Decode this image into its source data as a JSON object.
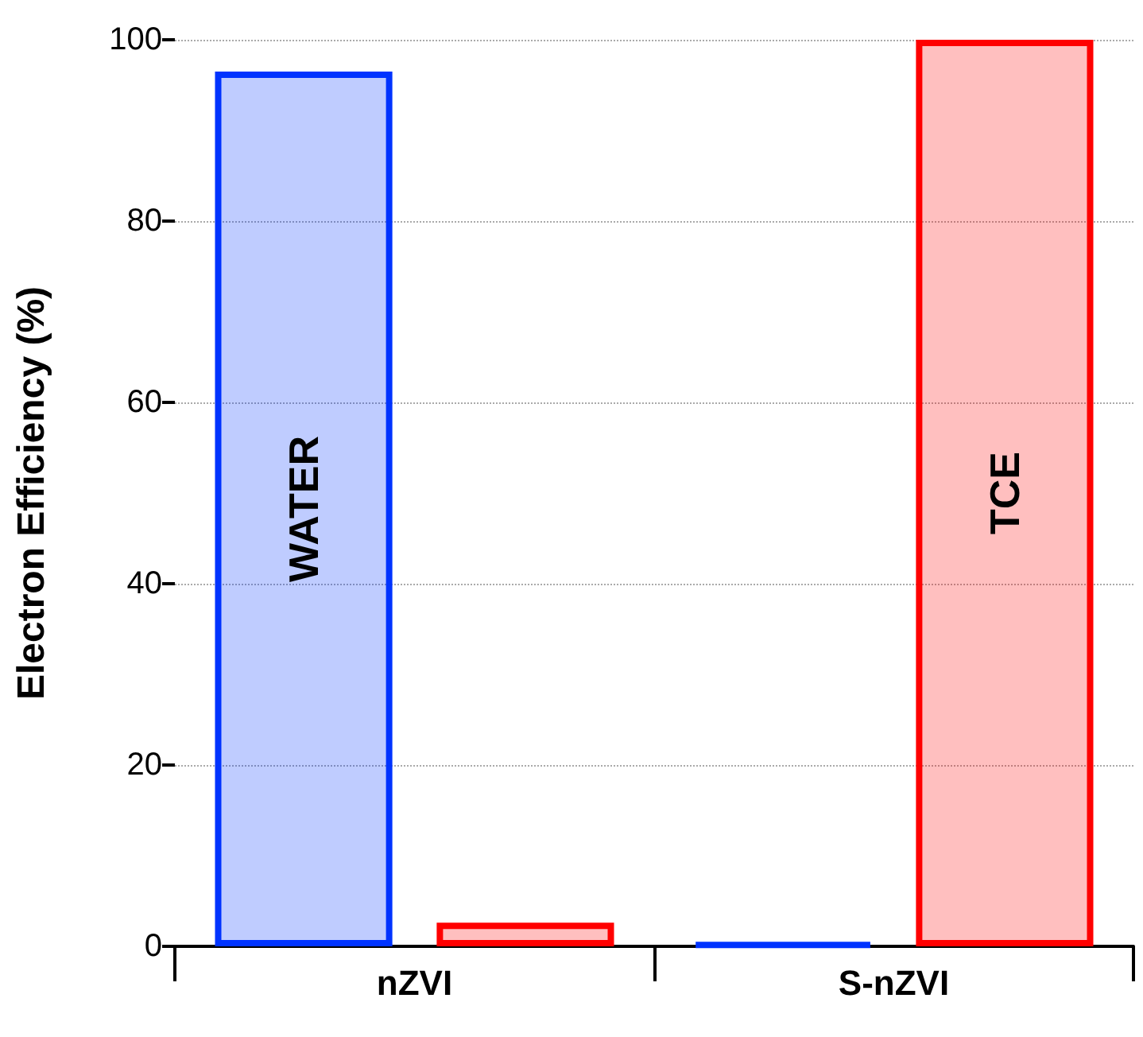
{
  "chart_data": {
    "type": "bar",
    "ylabel": "Electron Efficiency (%)",
    "categories": [
      "nZVI",
      "S-nZVI"
    ],
    "series": [
      {
        "name": "WATER",
        "color": "#0033ff",
        "values": [
          96.5,
          0.3
        ]
      },
      {
        "name": "TCE",
        "color": "#ff0000",
        "values": [
          2.6,
          100
        ]
      }
    ],
    "ylim": [
      0,
      100
    ],
    "yticks": [
      0,
      20,
      40,
      60,
      80,
      100
    ],
    "grid": "y",
    "legend": false
  }
}
